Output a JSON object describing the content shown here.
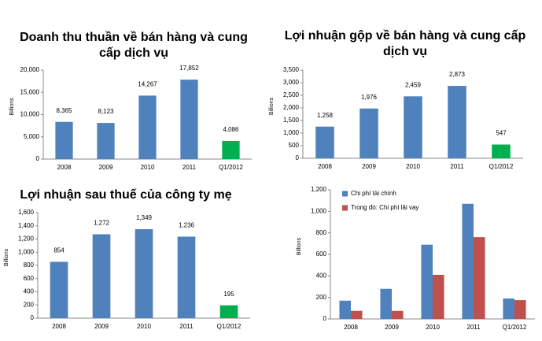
{
  "chart_data": [
    {
      "type": "bar",
      "title": "Doanh thu thuần về bán hàng và cung cấp dịch vụ",
      "y_label": "Billions",
      "categories": [
        "2008",
        "2009",
        "2010",
        "2011",
        "Q1/2012"
      ],
      "values": [
        8365,
        8123,
        14267,
        17852,
        4086
      ],
      "value_labels": [
        "8,365",
        "8,123",
        "14,267",
        "17,852",
        "4,086"
      ],
      "colors": [
        "#4f81bd",
        "#4f81bd",
        "#4f81bd",
        "#4f81bd",
        "#00b050"
      ],
      "ylim": [
        0,
        20000
      ],
      "yticks": [
        0,
        {
          "value": 5000,
          "label": "5,000"
        },
        {
          "value": 10000,
          "label": "10,000"
        },
        {
          "value": 15000,
          "label": "15,000"
        },
        {
          "value": 20000,
          "label": "20,000"
        }
      ]
    },
    {
      "type": "bar",
      "title": "Lợi nhuận gộp về bán hàng và cung cấp dịch vụ",
      "y_label": "Billions",
      "categories": [
        "2008",
        "2009",
        "2010",
        "2011",
        "Q1/2012"
      ],
      "values": [
        1258,
        1976,
        2459,
        2873,
        547
      ],
      "value_labels": [
        "1,258",
        "1,976",
        "2,459",
        "2,873",
        "547"
      ],
      "colors": [
        "#4f81bd",
        "#4f81bd",
        "#4f81bd",
        "#4f81bd",
        "#00b050"
      ],
      "ylim": [
        0,
        3500
      ],
      "yticks": [
        0,
        500,
        {
          "value": 1000,
          "label": "1,000"
        },
        {
          "value": 1500,
          "label": "1,500"
        },
        {
          "value": 2000,
          "label": "2,000"
        },
        {
          "value": 2500,
          "label": "2,500"
        },
        {
          "value": 3000,
          "label": "3,000"
        },
        {
          "value": 3500,
          "label": "3,500"
        }
      ]
    },
    {
      "type": "bar",
      "title": "Lợi nhuận sau thuế của công ty mẹ",
      "y_label": "Billions",
      "categories": [
        "2008",
        "2009",
        "2010",
        "2011",
        "Q1/2012"
      ],
      "values": [
        854,
        1272,
        1349,
        1236,
        195
      ],
      "value_labels": [
        "854",
        "1,272",
        "1,349",
        "1,236",
        "195"
      ],
      "colors": [
        "#4f81bd",
        "#4f81bd",
        "#4f81bd",
        "#4f81bd",
        "#00b050"
      ],
      "ylim": [
        0,
        1600
      ],
      "yticks": [
        0,
        200,
        400,
        600,
        800,
        {
          "value": 1000,
          "label": "1,000"
        },
        {
          "value": 1200,
          "label": "1,200"
        },
        {
          "value": 1400,
          "label": "1,400"
        },
        {
          "value": 1600,
          "label": "1,600"
        }
      ]
    },
    {
      "type": "grouped-bar",
      "y_label": "Billions",
      "legend": "top-left",
      "categories": [
        "2008",
        "2009",
        "2010",
        "2011",
        "Q1/2012"
      ],
      "series": [
        {
          "name": "Chi phí tài chính",
          "color": "#4f81bd",
          "values": [
            170,
            280,
            690,
            1070,
            190
          ]
        },
        {
          "name": "Trong đó: Chi phí lãi vay",
          "color": "#c0504d",
          "values": [
            75,
            75,
            410,
            760,
            175
          ]
        }
      ],
      "ylim": [
        0,
        1200
      ],
      "yticks": [
        0,
        200,
        400,
        600,
        800,
        {
          "value": 1000,
          "label": "1,000"
        },
        {
          "value": 1200,
          "label": "1,200"
        }
      ]
    }
  ]
}
